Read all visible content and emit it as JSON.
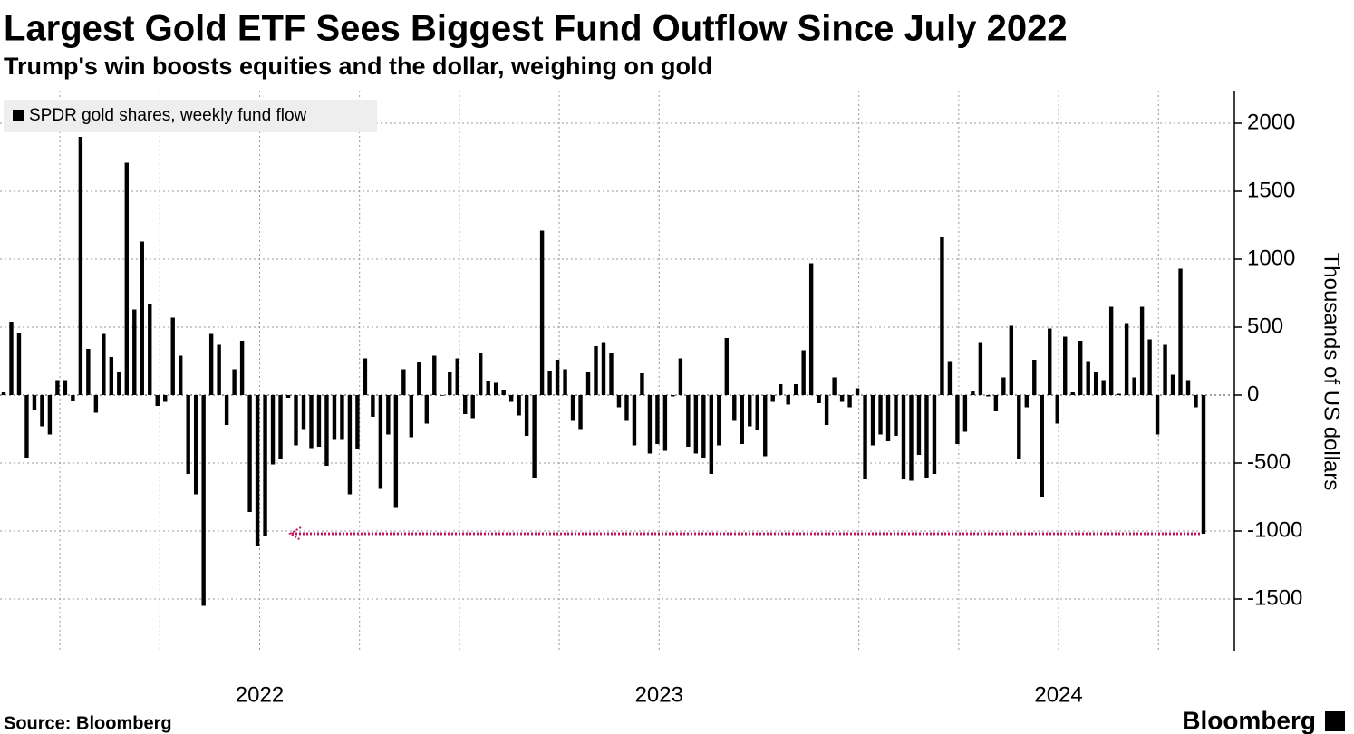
{
  "chart_data": {
    "type": "bar",
    "title": "Largest Gold ETF Sees Biggest Fund Outflow Since July 2022",
    "subtitle": "Trump's win boosts equities and the dollar, weighing on gold",
    "y_label": "Thousands of US dollars",
    "source": "Source: Bloomberg",
    "brand": "Bloomberg",
    "series": [
      {
        "name": "SPDR gold shares, weekly fund flow",
        "color": "#000000",
        "values": [
          20,
          540,
          460,
          -460,
          -110,
          -230,
          -290,
          110,
          110,
          -40,
          1900,
          340,
          -130,
          450,
          280,
          170,
          1710,
          630,
          1130,
          670,
          -80,
          -50,
          570,
          290,
          -580,
          -730,
          -1550,
          450,
          370,
          -220,
          190,
          400,
          -860,
          -1110,
          -1040,
          -510,
          -470,
          -20,
          -370,
          -250,
          -390,
          -380,
          -520,
          -330,
          -330,
          -730,
          -400,
          270,
          -160,
          -690,
          -290,
          -830,
          190,
          -310,
          240,
          -210,
          290,
          -5,
          170,
          270,
          -140,
          -170,
          310,
          100,
          90,
          40,
          -50,
          -150,
          -300,
          -610,
          1210,
          180,
          260,
          190,
          -190,
          -250,
          170,
          360,
          390,
          310,
          -90,
          -190,
          -370,
          160,
          -430,
          -360,
          -410,
          -10,
          270,
          -380,
          -430,
          -460,
          -580,
          -370,
          420,
          -190,
          -360,
          -230,
          -260,
          -450,
          -50,
          80,
          -70,
          80,
          330,
          970,
          -60,
          -220,
          130,
          -50,
          -90,
          50,
          -620,
          -370,
          -290,
          -340,
          -300,
          -620,
          -630,
          -440,
          -610,
          -580,
          1160,
          250,
          -360,
          -270,
          30,
          390,
          -10,
          -120,
          130,
          510,
          -470,
          -90,
          260,
          -750,
          490,
          -210,
          430,
          20,
          400,
          250,
          170,
          110,
          650,
          10,
          530,
          130,
          650,
          410,
          -290,
          370,
          150,
          930,
          110,
          -90,
          -1020
        ]
      }
    ],
    "ylim": [
      -1880,
      2240
    ],
    "yticks": [
      2000,
      1500,
      1000,
      500,
      0,
      -500,
      -1000,
      -1500
    ],
    "xlim": [
      2021.85,
      2024.94
    ],
    "xgrid": [
      2022,
      2022.25,
      2022.5,
      2022.75,
      2023,
      2023.25,
      2023.5,
      2023.75,
      2024,
      2024.25,
      2024.5,
      2024.75
    ],
    "xticks": [
      {
        "value": 2022.5,
        "label": "2022"
      },
      {
        "value": 2023.5,
        "label": "2023"
      },
      {
        "value": 2024.5,
        "label": "2024"
      }
    ],
    "grid": true,
    "legend": "top-left",
    "annotation_color": "#c2185b"
  }
}
